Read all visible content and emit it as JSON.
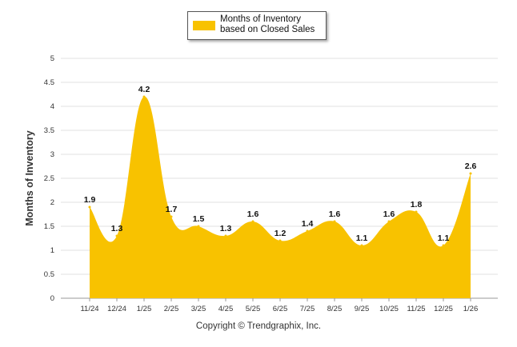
{
  "chart_data": {
    "type": "area",
    "categories": [
      "11/24",
      "12/24",
      "1/25",
      "2/25",
      "3/25",
      "4/25",
      "5/25",
      "6/25",
      "7/25",
      "8/25",
      "9/25",
      "10/25",
      "11/25",
      "12/25",
      "1/26"
    ],
    "series": [
      {
        "name": "Months of Inventory based on Closed Sales",
        "values": [
          1.9,
          1.3,
          4.2,
          1.7,
          1.5,
          1.3,
          1.6,
          1.2,
          1.4,
          1.6,
          1.1,
          1.6,
          1.8,
          1.1,
          2.6
        ],
        "color": "#F8C200"
      }
    ],
    "ylabel": "Months of Inventory",
    "xlabel": "",
    "ylim": [
      0,
      5
    ],
    "yticks": [
      "0",
      "0.5",
      "1",
      "1.5",
      "2",
      "2.5",
      "3",
      "3.5",
      "4",
      "4.5",
      "5"
    ],
    "grid": true,
    "legend_position": "top-center",
    "data_labels": [
      "1.9",
      "1.3",
      "4.2",
      "1.7",
      "1.5",
      "1.3",
      "1.6",
      "1.2",
      "1.4",
      "1.6",
      "1.1",
      "1.6",
      "1.8",
      "1.1",
      "2.6"
    ]
  },
  "legend": {
    "label": "Months of Inventory based on Closed Sales",
    "color": "#F8C200"
  },
  "footer": {
    "copyright": "Copyright © Trendgraphix, Inc."
  }
}
